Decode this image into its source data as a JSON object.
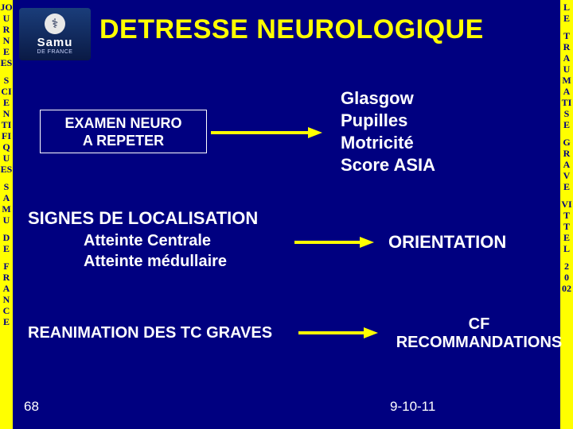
{
  "colors": {
    "background": "#000080",
    "accent": "#ffff00",
    "text": "#ffffff"
  },
  "left_strip_letters": [
    "JO",
    "U",
    "R",
    "N",
    "E",
    "ES",
    "",
    "S",
    "CI",
    "E",
    "N",
    "TI",
    "FI",
    "Q",
    "U",
    "ES",
    "",
    "S",
    "A",
    "M",
    "U",
    "",
    "D",
    "E",
    "",
    "F",
    "R",
    "A",
    "N",
    "C",
    "E"
  ],
  "right_strip_letters": [
    "L",
    "E",
    "",
    "T",
    "R",
    "A",
    "U",
    "M",
    "A",
    "TI",
    "S",
    "E",
    "",
    "G",
    "R",
    "A",
    "V",
    "E",
    "",
    "VI",
    "T",
    "T",
    "E",
    "L",
    "",
    "2",
    "0",
    "02"
  ],
  "logo": {
    "name": "Samu",
    "sub": "DE FRANCE"
  },
  "title": "DETRESSE NEUROLOGIQUE",
  "exam_box": {
    "line1": "EXAMEN NEURO",
    "line2": "A REPETER"
  },
  "glasgow_list": [
    "Glasgow",
    "Pupilles",
    "Motricité",
    "Score ASIA"
  ],
  "signes": "SIGNES DE LOCALISATION",
  "atteinte": {
    "line1": "Atteinte Centrale",
    "line2": "Atteinte médullaire"
  },
  "orientation": "ORIENTATION",
  "reanimation": "REANIMATION DES TC GRAVES",
  "cfreco": {
    "line1": "CF",
    "line2": "RECOMMANDATIONS"
  },
  "page_num": "68",
  "date": "9-10-11"
}
